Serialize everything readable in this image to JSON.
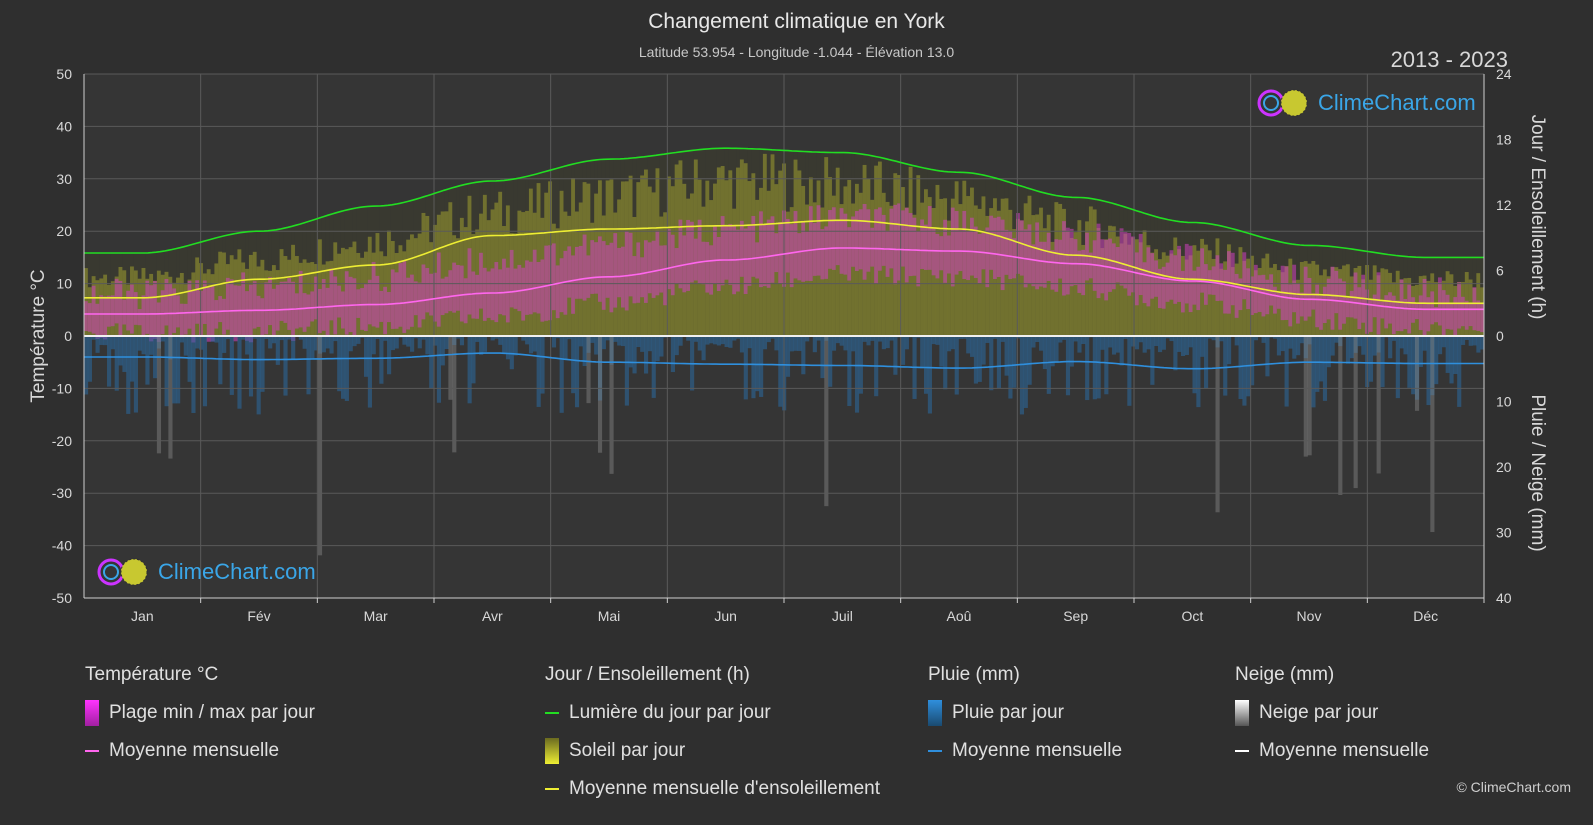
{
  "title": "Changement climatique en York",
  "subtitle": "Latitude 53.954 - Longitude -1.044 - Élévation 13.0",
  "period": "2013 - 2023",
  "logo_text": "ClimeChart.com",
  "copyright": "© ClimeChart.com",
  "colors": {
    "background": "#2f2f2f",
    "daylight": "#22dd22",
    "sunshine_mean": "#eeee33",
    "temp_mean": "#ff66ee",
    "rain_mean": "#2f8fdd",
    "temp_band": "#d040c0",
    "sun_band": "#a0a030",
    "rain_bar": "#2a6aa0",
    "snow_bar": "#888888"
  },
  "legend": {
    "temperature": {
      "header": "Température °C",
      "range": "Plage min / max par jour",
      "mean": "Moyenne mensuelle"
    },
    "sun": {
      "header": "Jour / Ensoleillement (h)",
      "daylight": "Lumière du jour par jour",
      "sunshine": "Soleil par jour",
      "sunshine_mean": "Moyenne mensuelle d'ensoleillement"
    },
    "rain": {
      "header": "Pluie (mm)",
      "per_day": "Pluie par jour",
      "mean": "Moyenne mensuelle"
    },
    "snow": {
      "header": "Neige (mm)",
      "per_day": "Neige par jour",
      "mean": "Moyenne mensuelle"
    }
  },
  "chart_data": {
    "type": "line",
    "categories": [
      "Jan",
      "Fév",
      "Mar",
      "Avr",
      "Mai",
      "Jun",
      "Juil",
      "Aoû",
      "Sep",
      "Oct",
      "Nov",
      "Déc"
    ],
    "y_left": {
      "label": "Température °C",
      "range": [
        -50,
        50
      ],
      "ticks": [
        50,
        40,
        30,
        20,
        10,
        0,
        -10,
        -20,
        -30,
        -40,
        -50
      ]
    },
    "y_right_top": {
      "label": "Jour / Ensoleillement (h)",
      "range": [
        0,
        24
      ],
      "ticks": [
        24,
        18,
        12,
        6,
        0
      ]
    },
    "y_right_bottom": {
      "label": "Pluie / Neige (mm)",
      "range": [
        0,
        40
      ],
      "ticks": [
        0,
        10,
        20,
        30,
        40
      ]
    },
    "grid": true,
    "series": [
      {
        "name": "Lumière du jour par jour",
        "unit": "h",
        "values": [
          7.6,
          9.6,
          11.9,
          14.2,
          16.2,
          17.2,
          16.8,
          15.0,
          12.7,
          10.4,
          8.3,
          7.2
        ]
      },
      {
        "name": "Moyenne mensuelle d'ensoleillement",
        "unit": "h",
        "values": [
          3.5,
          5.2,
          6.5,
          9.2,
          9.8,
          10.1,
          10.6,
          9.8,
          7.4,
          5.2,
          3.8,
          3.0
        ]
      },
      {
        "name": "Soleil par jour",
        "unit": "h",
        "values": [
          5.8,
          7.5,
          9.5,
          12.2,
          13.8,
          15.4,
          15.0,
          13.6,
          11.0,
          8.4,
          6.4,
          5.6
        ]
      },
      {
        "name": "Moyenne mensuelle",
        "unit": "°C",
        "values": [
          4.2,
          4.9,
          6.0,
          8.2,
          11.3,
          14.5,
          16.8,
          16.2,
          13.8,
          10.5,
          7.0,
          5.1
        ]
      },
      {
        "name": "Plage min / max par jour",
        "unit": "°C",
        "min": [
          0.5,
          0.8,
          1.8,
          3.6,
          6.2,
          9.4,
          11.6,
          11.3,
          9.2,
          6.4,
          3.2,
          1.4
        ],
        "max": [
          8.0,
          9.2,
          11.2,
          14.4,
          17.4,
          20.3,
          22.6,
          22.0,
          19.0,
          14.8,
          10.6,
          8.4
        ]
      },
      {
        "name": "Moyenne mensuelle",
        "unit": "mm",
        "values": [
          3.2,
          3.6,
          3.4,
          2.6,
          4.0,
          4.3,
          4.5,
          4.9,
          3.9,
          5.0,
          4.0,
          4.2
        ]
      }
    ]
  }
}
